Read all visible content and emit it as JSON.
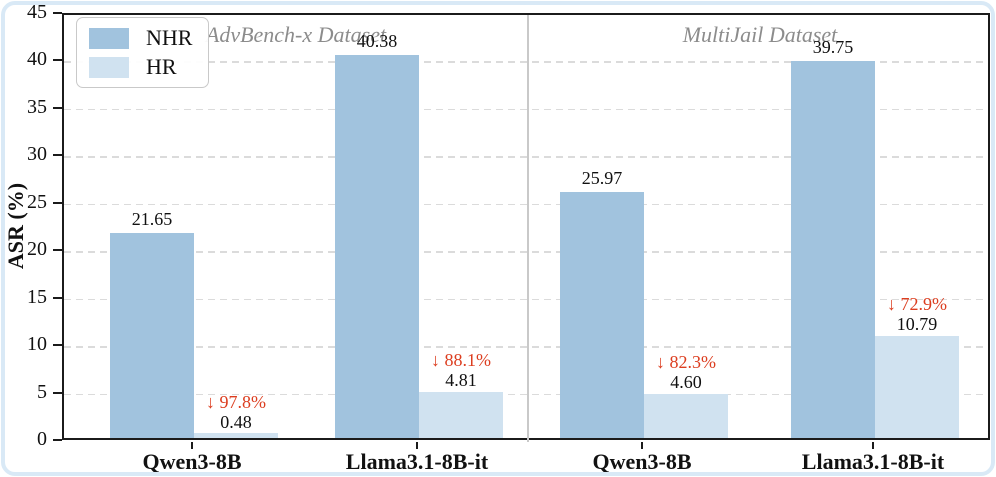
{
  "chart_data": {
    "type": "bar",
    "title": "",
    "ylabel": "ASR (%)",
    "xlabel": "",
    "ylim": [
      0,
      45
    ],
    "ytick_step": 5,
    "yticks": [
      0,
      5,
      10,
      15,
      20,
      25,
      30,
      35,
      40,
      45
    ],
    "grid": "horizontal-dashed",
    "legend": {
      "position": "top-left",
      "entries": [
        "NHR",
        "HR"
      ]
    },
    "panels": [
      {
        "title": "AdvBench-x Dataset",
        "categories": [
          "Qwen3-8B",
          "Llama3.1-8B-it"
        ],
        "series": [
          {
            "name": "NHR",
            "values": [
              21.65,
              40.38
            ],
            "labels": [
              "21.65",
              "40.38"
            ]
          },
          {
            "name": "HR",
            "values": [
              0.48,
              4.81
            ],
            "labels": [
              "0.48",
              "4.81"
            ]
          }
        ],
        "hr_reduction_labels": [
          "↓ 97.8%",
          "↓ 88.1%"
        ]
      },
      {
        "title": "MultiJail Dataset",
        "categories": [
          "Qwen3-8B",
          "Llama3.1-8B-it"
        ],
        "series": [
          {
            "name": "NHR",
            "values": [
              25.97,
              39.75
            ],
            "labels": [
              "25.97",
              "39.75"
            ]
          },
          {
            "name": "HR",
            "values": [
              4.6,
              10.79
            ],
            "labels": [
              "4.60",
              "10.79"
            ]
          }
        ],
        "hr_reduction_labels": [
          "↓ 82.3%",
          "↓ 72.9%"
        ]
      }
    ],
    "colors": {
      "nhr_bar": "#a1c3de",
      "hr_bar": "#d0e2f0",
      "reduction_text": "#dc3d1f",
      "panel_title": "#8c8c8c",
      "grid_line": "#dbdbdb",
      "axis_frame": "#1b1b1b",
      "divider": "#c9c9c9",
      "page_border": "#d9e9f6"
    }
  }
}
